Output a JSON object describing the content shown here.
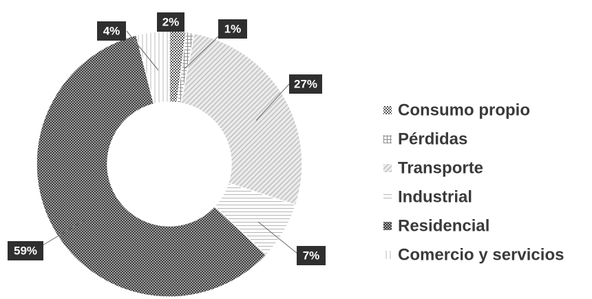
{
  "chart_data": {
    "type": "pie",
    "categories": [
      "Consumo propio",
      "Pérdidas",
      "Transporte",
      "Industrial",
      "Residencial",
      "Comercio y servicios"
    ],
    "values": [
      2,
      1,
      27,
      7,
      59,
      4
    ],
    "value_labels": [
      "2%",
      "1%",
      "27%",
      "7%",
      "59%",
      "4%"
    ],
    "colors": [
      "#5a5a5a",
      "#9a9a9a",
      "#cfcfcf",
      "#bdbdbd",
      "#444444",
      "#d0d0d0"
    ],
    "donut": true,
    "legend": "right"
  }
}
